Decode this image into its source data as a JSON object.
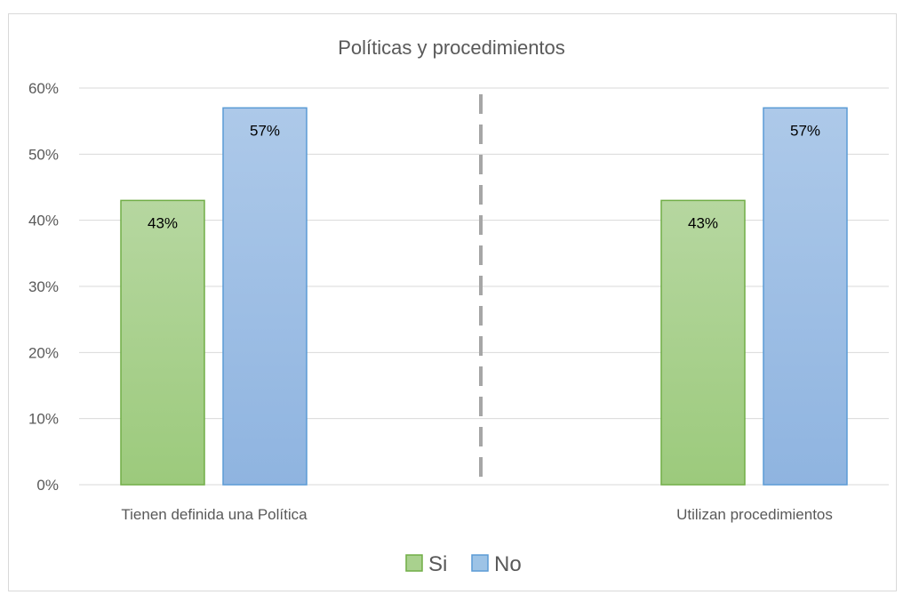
{
  "chart_data": {
    "type": "bar",
    "title": "Políticas y procedimientos",
    "categories": [
      "Tienen definida una Política",
      "Utilizan procedimientos"
    ],
    "series": [
      {
        "name": "Si",
        "values": [
          43,
          43
        ],
        "labels": [
          "43%",
          "43%"
        ],
        "color": "#a9d18e",
        "border": "#70ad47"
      },
      {
        "name": "No",
        "values": [
          57,
          57
        ],
        "labels": [
          "57%",
          "57%"
        ],
        "color": "#9dc3e6",
        "border": "#5b9bd5"
      }
    ],
    "y_ticks": [
      "0%",
      "10%",
      "20%",
      "30%",
      "40%",
      "50%",
      "60%"
    ],
    "ylim": [
      0,
      60
    ],
    "grid": true,
    "legend": "bottom",
    "separator": "dashed vertical line between categories"
  }
}
